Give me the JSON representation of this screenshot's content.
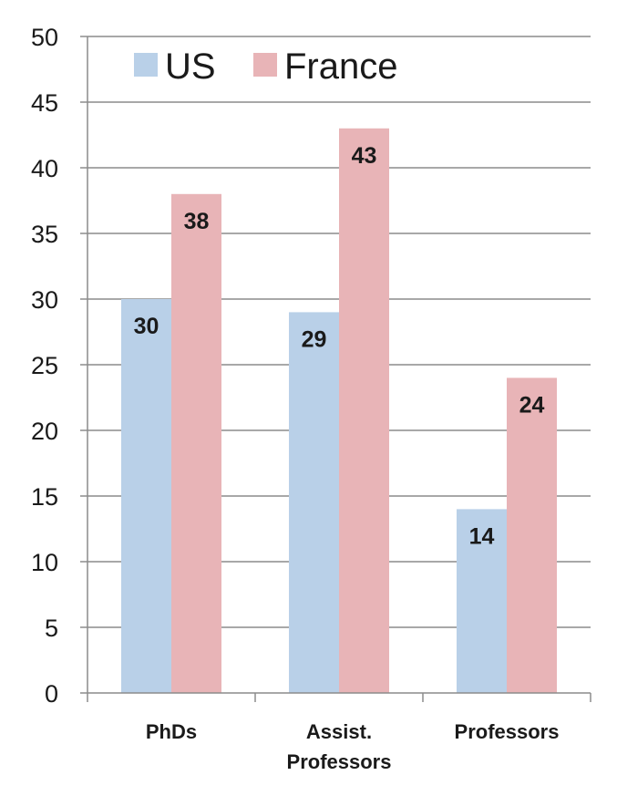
{
  "chart_data": {
    "type": "bar",
    "categories": [
      [
        "PhDs"
      ],
      [
        "Assist.",
        "Professors"
      ],
      [
        "Professors"
      ]
    ],
    "series": [
      {
        "name": "US",
        "values": [
          30,
          29,
          14
        ],
        "color": "#b9d0e8"
      },
      {
        "name": "France",
        "values": [
          38,
          43,
          24
        ],
        "color": "#e8b4b7"
      }
    ],
    "title": "",
    "xlabel": "",
    "ylabel": "",
    "ylim": [
      0,
      50
    ],
    "yticks": [
      0,
      5,
      10,
      15,
      20,
      25,
      30,
      35,
      40,
      45,
      50
    ],
    "grid": true,
    "legend": {
      "position": "top-left",
      "orientation": "horizontal"
    },
    "data_labels": true
  }
}
